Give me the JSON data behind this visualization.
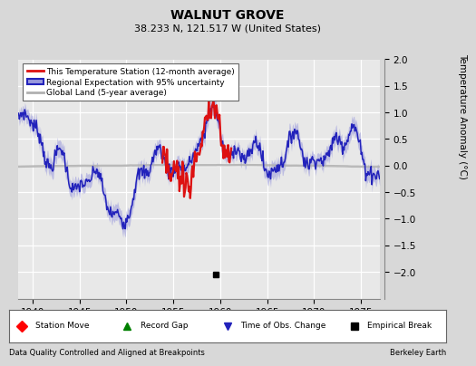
{
  "title": "WALNUT GROVE",
  "subtitle": "38.233 N, 121.517 W (United States)",
  "ylabel": "Temperature Anomaly (°C)",
  "xlabel_note": "Data Quality Controlled and Aligned at Breakpoints",
  "credit": "Berkeley Earth",
  "xlim": [
    1938.5,
    1977.0
  ],
  "ylim": [
    -2.5,
    2.0
  ],
  "yticks": [
    -2.0,
    -1.5,
    -1.0,
    -0.5,
    0.0,
    0.5,
    1.0,
    1.5,
    2.0
  ],
  "xticks": [
    1940,
    1945,
    1950,
    1955,
    1960,
    1965,
    1970,
    1975
  ],
  "blue_color": "#2222bb",
  "blue_fill_color": "#9999dd",
  "red_color": "#dd1111",
  "gray_color": "#b0b0b0",
  "bg_color": "#d8d8d8",
  "plot_bg_color": "#e8e8e8",
  "empirical_break_x": 1959.5,
  "empirical_break_y": -2.05
}
